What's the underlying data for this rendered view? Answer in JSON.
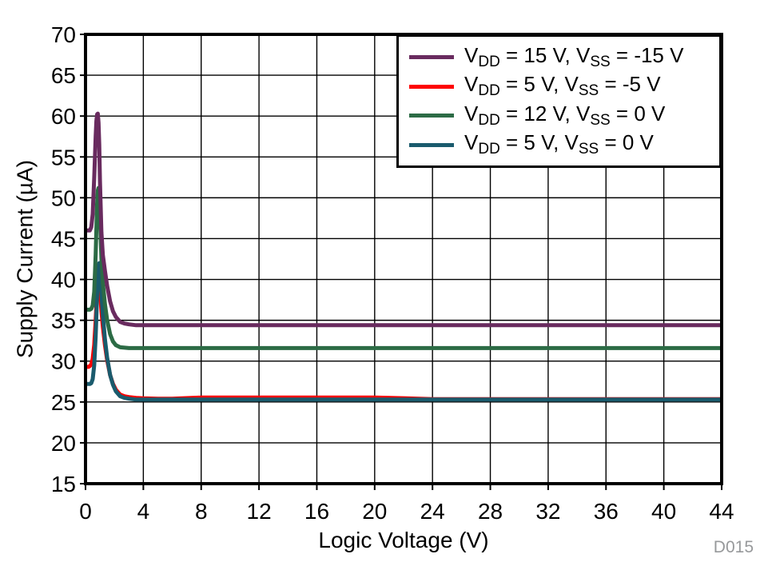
{
  "figure": {
    "watermark": "D015",
    "background": "#ffffff",
    "watermark_color": "#97999b",
    "grid_color": "#000000",
    "border_color": "#000000"
  },
  "chart_data": {
    "type": "line",
    "title": "",
    "xlabel": "Logic Voltage (V)",
    "ylabel": "Supply Current (µA)",
    "xlim": [
      0,
      44
    ],
    "ylim": [
      15,
      70
    ],
    "xticks": [
      0,
      4,
      8,
      12,
      16,
      20,
      24,
      28,
      32,
      36,
      40,
      44
    ],
    "yticks": [
      15,
      20,
      25,
      30,
      35,
      40,
      45,
      50,
      55,
      60,
      65,
      70
    ],
    "grid": true,
    "legend_position": "top-right",
    "draw_order": [
      1,
      3,
      2,
      0
    ],
    "x": [
      0,
      0.1,
      0.2,
      0.3,
      0.4,
      0.5,
      0.6,
      0.7,
      0.75,
      0.8,
      0.85,
      0.9,
      0.95,
      1.0,
      1.1,
      1.2,
      1.35,
      1.5,
      1.7,
      1.9,
      2.1,
      2.4,
      2.7,
      3.0,
      3.5,
      4.0,
      5,
      6,
      8,
      12,
      16,
      20,
      24,
      28,
      32,
      36,
      40,
      44
    ],
    "series": [
      {
        "name": "VDD = 15 V, VSS = -15 V",
        "color": "#692b5f",
        "label_parts": [
          {
            "t": "V"
          },
          {
            "t": "DD",
            "sub": true
          },
          {
            "t": " = 15 V, "
          },
          {
            "t": "V"
          },
          {
            "t": "SS",
            "sub": true
          },
          {
            "t": " = -15 V"
          }
        ],
        "values": [
          46,
          46,
          46,
          46,
          46.4,
          48,
          52.5,
          57.5,
          59.4,
          60.2,
          60.3,
          59.2,
          56.5,
          52,
          45.8,
          43,
          41,
          39.2,
          37.3,
          36.1,
          35.4,
          34.8,
          34.6,
          34.5,
          34.4,
          34.4,
          34.4,
          34.4,
          34.4,
          34.4,
          34.4,
          34.4,
          34.4,
          34.4,
          34.4,
          34.4,
          34.4,
          34.4
        ]
      },
      {
        "name": "VDD = 5 V, VSS = -5 V",
        "color": "#fe0000",
        "label_parts": [
          {
            "t": "V"
          },
          {
            "t": "DD",
            "sub": true
          },
          {
            "t": " = 5 V, "
          },
          {
            "t": "V"
          },
          {
            "t": "SS",
            "sub": true
          },
          {
            "t": " = -5 V"
          }
        ],
        "values": [
          29.3,
          29.3,
          29.3,
          29.4,
          29.6,
          30.3,
          32,
          35,
          36.8,
          38.3,
          39.4,
          40,
          39.6,
          38.6,
          36.2,
          34.2,
          31.9,
          30.1,
          28.3,
          27.2,
          26.5,
          25.9,
          25.7,
          25.6,
          25.5,
          25.45,
          25.4,
          25.4,
          25.55,
          25.55,
          25.55,
          25.55,
          25.35,
          25.35,
          25.35,
          25.35,
          25.35,
          25.35
        ]
      },
      {
        "name": "VDD = 12 V, VSS = 0 V",
        "color": "#2c6b45",
        "label_parts": [
          {
            "t": "V"
          },
          {
            "t": "DD",
            "sub": true
          },
          {
            "t": " = 12 V, "
          },
          {
            "t": "V"
          },
          {
            "t": "SS",
            "sub": true
          },
          {
            "t": " = 0 V"
          }
        ],
        "values": [
          36.3,
          36.3,
          36.3,
          36.3,
          36.4,
          36.8,
          38.5,
          43,
          46.2,
          49.2,
          50.9,
          51.2,
          50.2,
          47.6,
          42.6,
          39.6,
          36.9,
          35,
          33.3,
          32.4,
          31.95,
          31.7,
          31.65,
          31.6,
          31.6,
          31.6,
          31.6,
          31.6,
          31.6,
          31.6,
          31.6,
          31.6,
          31.6,
          31.6,
          31.6,
          31.6,
          31.6,
          31.6
        ]
      },
      {
        "name": "VDD = 5 V, VSS = 0 V",
        "color": "#1a5b6d",
        "label_parts": [
          {
            "t": "V"
          },
          {
            "t": "DD",
            "sub": true
          },
          {
            "t": " = 5 V, "
          },
          {
            "t": "V"
          },
          {
            "t": "SS",
            "sub": true
          },
          {
            "t": " = 0 V"
          }
        ],
        "values": [
          27.2,
          27.2,
          27.2,
          27.2,
          27.3,
          27.8,
          29.5,
          33,
          35.5,
          38.2,
          40.3,
          41.6,
          42,
          41.2,
          38.3,
          35.6,
          32.6,
          30.4,
          28.3,
          27.1,
          26.3,
          25.7,
          25.5,
          25.4,
          25.3,
          25.3,
          25.3,
          25.3,
          25.3,
          25.3,
          25.3,
          25.3,
          25.3,
          25.3,
          25.3,
          25.3,
          25.3,
          25.3
        ]
      }
    ]
  }
}
